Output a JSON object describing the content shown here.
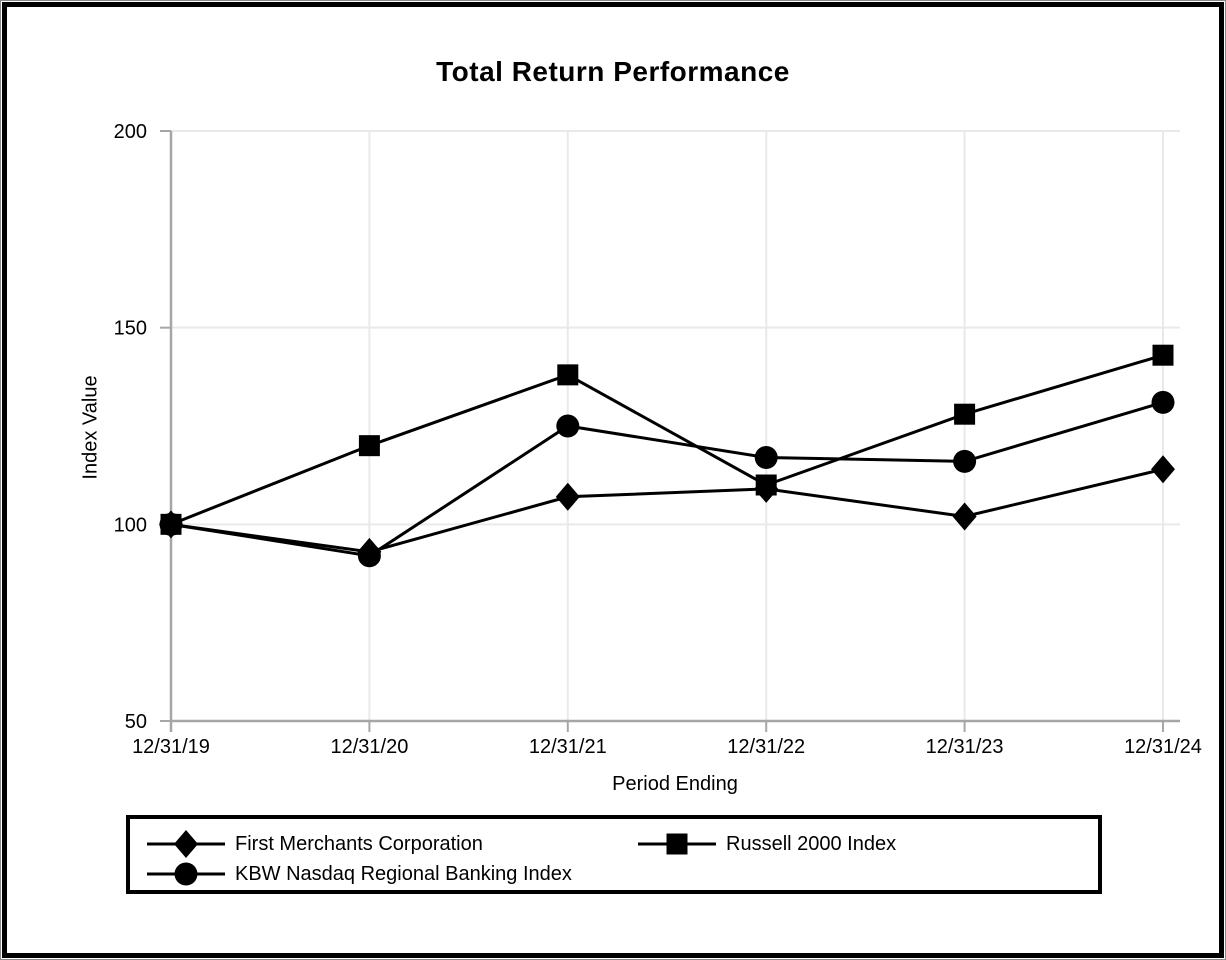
{
  "chart_data": {
    "type": "line",
    "title": "Total Return Performance",
    "xlabel": "Period Ending",
    "ylabel": "Index Value",
    "categories": [
      "12/31/19",
      "12/31/20",
      "12/31/21",
      "12/31/22",
      "12/31/23",
      "12/31/24"
    ],
    "series": [
      {
        "name": "First Merchants Corporation",
        "marker": "diamond",
        "values": [
          100,
          93,
          107,
          109,
          102,
          114
        ]
      },
      {
        "name": "Russell 2000 Index",
        "marker": "square",
        "values": [
          100,
          120,
          138,
          110,
          128,
          143
        ]
      },
      {
        "name": "KBW Nasdaq Regional Banking Index",
        "marker": "circle",
        "values": [
          100,
          92,
          125,
          117,
          116,
          131
        ]
      }
    ],
    "draw_order": [
      0,
      2,
      1
    ],
    "ylim": [
      50,
      200
    ],
    "yticks": [
      50,
      100,
      150,
      200
    ],
    "grid": true,
    "legend_position": "bottom",
    "line_color": "#000000",
    "marker_color": "#000000",
    "axis_color": "#a6a6a6",
    "grid_color": "#e9e9e9",
    "text_color": "#000000"
  }
}
